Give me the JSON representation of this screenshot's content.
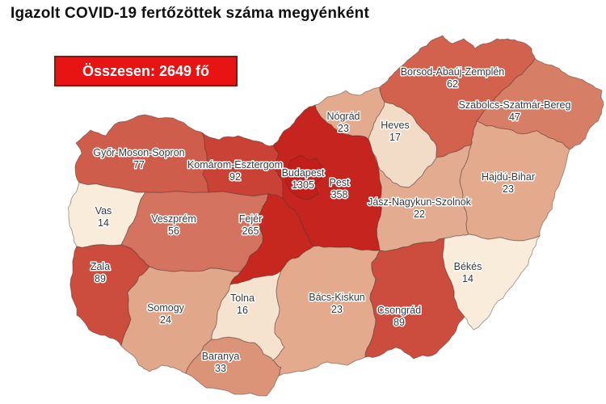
{
  "title": "Igazolt COVID-19 fertőzöttek száma megyénként",
  "total_box": {
    "label": "Összesen: 2649 fő",
    "bg_color": "#e81313",
    "border_color": "#8e1410",
    "text_color": "#ffffff"
  },
  "map": {
    "background": "#ffffff",
    "stroke_color": "rgba(75,52,45,0.45)",
    "label_color": "#3a3a3a",
    "label_halo": "#ffffff",
    "counties": [
      {
        "id": "gyor-moson-sopron",
        "name": "Győr-Moson-Sopron",
        "value": "77",
        "fill": "#cf5d4c"
      },
      {
        "id": "komarom-esztergom",
        "name": "Komárom-Esztergom",
        "value": "92",
        "fill": "#ca4236"
      },
      {
        "id": "vas",
        "name": "Vas",
        "value": "14",
        "fill": "#f9ecdb"
      },
      {
        "id": "veszprem",
        "name": "Veszprém",
        "value": "56",
        "fill": "#d47460"
      },
      {
        "id": "zala",
        "name": "Zala",
        "value": "89",
        "fill": "#cc4c3e"
      },
      {
        "id": "somogy",
        "name": "Somogy",
        "value": "24",
        "fill": "#e1a78b"
      },
      {
        "id": "baranya",
        "name": "Baranya",
        "value": "33",
        "fill": "#dc9478"
      },
      {
        "id": "tolna",
        "name": "Tolna",
        "value": "16",
        "fill": "#f5e3d0"
      },
      {
        "id": "fejer",
        "name": "Fejér",
        "value": "265",
        "fill": "#c6281f"
      },
      {
        "id": "pest",
        "name": "Pest",
        "value": "358",
        "fill": "#c5241f"
      },
      {
        "id": "budapest",
        "name": "Budapest",
        "value": "1305",
        "fill": "#c21f1b"
      },
      {
        "id": "nograd",
        "name": "Nógrád",
        "value": "23",
        "fill": "#e3aa8e"
      },
      {
        "id": "heves",
        "name": "Heves",
        "value": "17",
        "fill": "#f2dcc7"
      },
      {
        "id": "borsod-abauj-zemplen",
        "name": "Borsod-Abaúj-Zemplén",
        "value": "62",
        "fill": "#d2624e"
      },
      {
        "id": "szabolcs-szatmar-bereg",
        "name": "Szabolcs-Szatmár-Bereg",
        "value": "47",
        "fill": "#d77e66"
      },
      {
        "id": "hajdu-bihar",
        "name": "Hajdú-Bihar",
        "value": "23",
        "fill": "#e3aa8e"
      },
      {
        "id": "jasz-nagykun-szolnok",
        "name": "Jász-Nagykun-Szolnok",
        "value": "22",
        "fill": "#e3ac90"
      },
      {
        "id": "bacs-kiskun",
        "name": "Bács-Kiskun",
        "value": "23",
        "fill": "#e3aa8e"
      },
      {
        "id": "csongrad",
        "name": "Csongrád",
        "value": "89",
        "fill": "#cc4c3e"
      },
      {
        "id": "bekes",
        "name": "Békés",
        "value": "14",
        "fill": "#f9ecdb"
      }
    ]
  }
}
